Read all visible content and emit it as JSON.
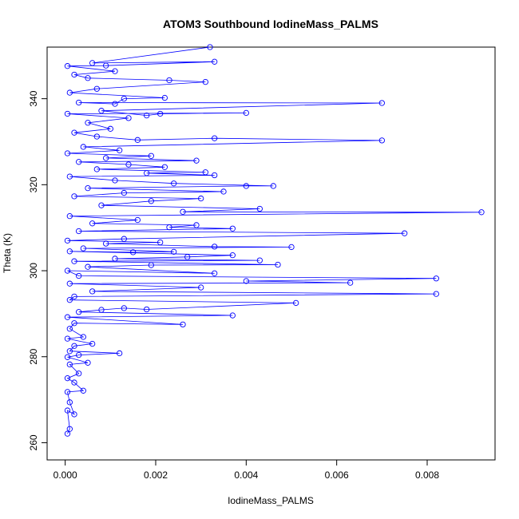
{
  "chart_data": {
    "type": "scatter",
    "title": "ATOM3 Southbound IodineMass_PALMS",
    "xlabel": "IodineMass_PALMS",
    "ylabel": "Theta (K)",
    "xlim": [
      -0.0004,
      0.0095
    ],
    "ylim": [
      256,
      352
    ],
    "x_ticks": [
      0.0,
      0.002,
      0.004,
      0.006,
      0.008
    ],
    "x_tick_labels": [
      "0.000",
      "0.002",
      "0.004",
      "0.006",
      "0.008"
    ],
    "y_ticks": [
      260,
      280,
      300,
      320,
      340
    ],
    "y_tick_labels": [
      "260",
      "280",
      "300",
      "320",
      "340"
    ],
    "grid": false,
    "series": [
      {
        "color": "#0000ff",
        "marker": "open-circle",
        "line": true,
        "points": [
          [
            5e-05,
            262.1
          ],
          [
            0.0001,
            263.2
          ],
          [
            5e-05,
            267.5
          ],
          [
            0.0002,
            266.6
          ],
          [
            0.0001,
            269.4
          ],
          [
            5e-05,
            271.8
          ],
          [
            0.0004,
            272.1
          ],
          [
            0.0002,
            274.0
          ],
          [
            5e-05,
            275.0
          ],
          [
            0.0003,
            276.1
          ],
          [
            0.0001,
            278.2
          ],
          [
            0.0005,
            278.6
          ],
          [
            5e-05,
            279.9
          ],
          [
            0.0003,
            280.4
          ],
          [
            0.0012,
            280.8
          ],
          [
            0.0001,
            281.3
          ],
          [
            0.0002,
            282.5
          ],
          [
            0.0006,
            283.0
          ],
          [
            5e-05,
            284.2
          ],
          [
            0.0004,
            284.6
          ],
          [
            0.0001,
            286.5
          ],
          [
            0.0002,
            287.8
          ],
          [
            0.0026,
            287.5
          ],
          [
            5e-05,
            289.2
          ],
          [
            0.0037,
            289.6
          ],
          [
            0.0003,
            290.4
          ],
          [
            0.0008,
            290.9
          ],
          [
            0.0013,
            291.3
          ],
          [
            0.0018,
            291.0
          ],
          [
            0.0051,
            292.5
          ],
          [
            0.0001,
            293.2
          ],
          [
            0.0002,
            294.0
          ],
          [
            0.0082,
            294.6
          ],
          [
            0.0006,
            295.2
          ],
          [
            0.003,
            296.1
          ],
          [
            0.0001,
            297.0
          ],
          [
            0.0063,
            297.2
          ],
          [
            0.004,
            297.6
          ],
          [
            0.0082,
            298.2
          ],
          [
            0.0003,
            298.8
          ],
          [
            5e-05,
            300.0
          ],
          [
            0.0033,
            299.4
          ],
          [
            0.0005,
            300.9
          ],
          [
            0.0019,
            301.3
          ],
          [
            0.0047,
            301.4
          ],
          [
            0.0002,
            302.2
          ],
          [
            0.0043,
            302.4
          ],
          [
            0.0011,
            302.8
          ],
          [
            0.0027,
            303.2
          ],
          [
            0.0037,
            303.6
          ],
          [
            0.0001,
            304.5
          ],
          [
            0.0015,
            304.3
          ],
          [
            0.0024,
            304.4
          ],
          [
            0.0004,
            305.2
          ],
          [
            0.005,
            305.5
          ],
          [
            0.0033,
            305.6
          ],
          [
            0.0009,
            306.3
          ],
          [
            0.0021,
            306.6
          ],
          [
            5e-05,
            307.0
          ],
          [
            0.0013,
            307.4
          ],
          [
            0.0075,
            308.7
          ],
          [
            0.0003,
            309.2
          ],
          [
            0.0037,
            309.8
          ],
          [
            0.0023,
            310.1
          ],
          [
            0.0029,
            310.6
          ],
          [
            0.0006,
            311.0
          ],
          [
            0.0016,
            311.8
          ],
          [
            0.0001,
            312.7
          ],
          [
            0.0092,
            313.6
          ],
          [
            0.0026,
            313.7
          ],
          [
            0.0043,
            314.4
          ],
          [
            0.0008,
            315.2
          ],
          [
            0.0019,
            316.2
          ],
          [
            0.003,
            316.8
          ],
          [
            0.0002,
            317.3
          ],
          [
            0.0013,
            318.1
          ],
          [
            0.0035,
            318.4
          ],
          [
            0.0005,
            319.2
          ],
          [
            0.004,
            319.7
          ],
          [
            0.0046,
            319.7
          ],
          [
            0.0024,
            320.3
          ],
          [
            0.0011,
            321.0
          ],
          [
            0.0001,
            321.9
          ],
          [
            0.0033,
            322.2
          ],
          [
            0.0018,
            322.7
          ],
          [
            0.0031,
            322.9
          ],
          [
            0.0007,
            323.6
          ],
          [
            0.0022,
            324.1
          ],
          [
            0.0014,
            324.7
          ],
          [
            0.0003,
            325.3
          ],
          [
            0.0029,
            325.6
          ],
          [
            0.0009,
            326.2
          ],
          [
            0.0019,
            326.7
          ],
          [
            5e-05,
            327.3
          ],
          [
            0.0012,
            328.0
          ],
          [
            0.0004,
            328.8
          ],
          [
            0.007,
            330.3
          ],
          [
            0.0033,
            330.8
          ],
          [
            0.0016,
            330.4
          ],
          [
            0.0007,
            331.2
          ],
          [
            0.0002,
            332.1
          ],
          [
            0.001,
            333.0
          ],
          [
            0.0005,
            334.4
          ],
          [
            0.0014,
            335.5
          ],
          [
            5e-05,
            336.5
          ],
          [
            0.004,
            336.7
          ],
          [
            0.0021,
            336.5
          ],
          [
            0.0018,
            336.1
          ],
          [
            0.0008,
            337.2
          ],
          [
            0.007,
            339.0
          ],
          [
            0.0003,
            339.1
          ],
          [
            0.0011,
            338.8
          ],
          [
            0.0013,
            340.0
          ],
          [
            0.0022,
            340.2
          ],
          [
            0.0001,
            341.4
          ],
          [
            0.0007,
            342.3
          ],
          [
            0.0031,
            343.9
          ],
          [
            0.0023,
            344.3
          ],
          [
            0.0005,
            344.8
          ],
          [
            0.0002,
            345.6
          ],
          [
            0.0011,
            346.4
          ],
          [
            5e-05,
            347.6
          ],
          [
            0.0009,
            347.7
          ],
          [
            0.0033,
            348.6
          ],
          [
            0.0006,
            348.3
          ],
          [
            0.0032,
            352.0
          ]
        ]
      }
    ]
  }
}
